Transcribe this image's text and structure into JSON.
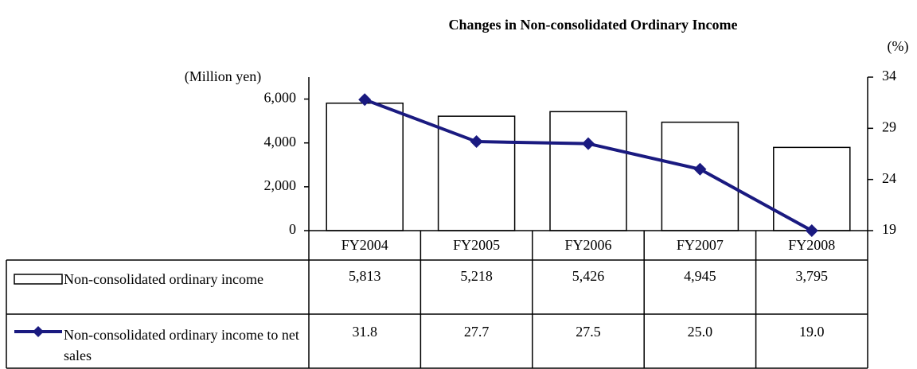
{
  "chart_data": {
    "type": "bar_line_table",
    "title": "Changes in Non-consolidated Ordinary Income",
    "y_label": "(Million yen)",
    "y2_label": "(%)",
    "categories": [
      "FY2004",
      "FY2005",
      "FY2006",
      "FY2007",
      "FY2008"
    ],
    "ylim": [
      0,
      7000
    ],
    "yticks": [
      0,
      {
        "value": 2000,
        "label": "2,000"
      },
      {
        "value": 4000,
        "label": "4,000"
      },
      {
        "value": 6000,
        "label": "6,000"
      }
    ],
    "y2lim": [
      19,
      34
    ],
    "y2ticks": [
      19,
      24,
      29,
      34
    ],
    "series": [
      {
        "name": "Non-consolidated ordinary income",
        "type": "bar",
        "color": "#ffffff",
        "values": [
          5813,
          5218,
          5426,
          4945,
          3795
        ],
        "value_labels": [
          "5,813",
          "5,218",
          "5,426",
          "4,945",
          "3,795"
        ]
      },
      {
        "name": "Non-consolidated ordinary income to net sales",
        "type": "line",
        "axis": "y2",
        "color": "#1a1a80",
        "values": [
          31.8,
          27.7,
          27.5,
          25.0,
          19.0
        ],
        "value_labels": [
          "31.8",
          "27.7",
          "27.5",
          "25.0",
          "19.0"
        ]
      }
    ]
  }
}
